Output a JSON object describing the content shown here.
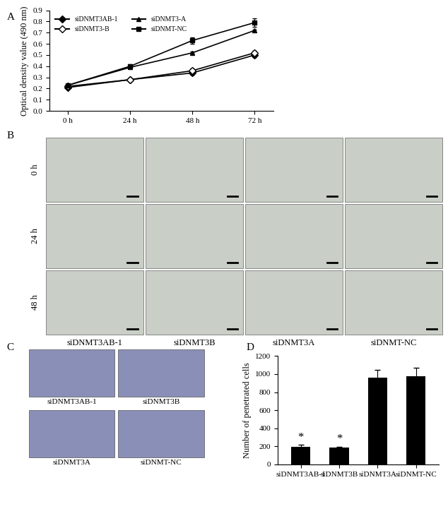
{
  "chart_data": [
    {
      "panel": "A",
      "type": "line",
      "categories": [
        "0 h",
        "24 h",
        "48 h",
        "72 h"
      ],
      "y_label": "Optical density value (490 nm)",
      "ylim": [
        0.0,
        0.9
      ],
      "yticks": [
        0.0,
        0.1,
        0.2,
        0.3,
        0.4,
        0.5,
        0.6,
        0.7,
        0.8,
        0.9
      ],
      "legend": "upper left",
      "series": [
        {
          "name": "siDNMT3AB-1",
          "color": "#000000",
          "marker": "diamond",
          "line_style": "solid",
          "values": [
            0.21,
            0.28,
            0.34,
            0.5
          ],
          "errors": [
            0.01,
            0.01,
            0.015,
            0.02
          ]
        },
        {
          "name": "siDNMT3-B",
          "color": "#000000",
          "marker": "open_diamond",
          "line_style": "solid",
          "values": [
            0.22,
            0.28,
            0.36,
            0.52
          ],
          "errors": [
            0.01,
            0.01,
            0.02,
            0.02
          ]
        },
        {
          "name": "siDNMT3-A",
          "color": "#000000",
          "marker": "triangle",
          "line_style": "solid",
          "values": [
            0.23,
            0.39,
            0.52,
            0.72
          ],
          "errors": [
            0.01,
            0.01,
            0.01,
            0.01
          ]
        },
        {
          "name": "siDNMT-NC",
          "color": "#000000",
          "marker": "square",
          "line_style": "solid",
          "values": [
            0.23,
            0.4,
            0.63,
            0.79
          ],
          "errors": [
            0.01,
            0.015,
            0.03,
            0.04
          ]
        }
      ]
    },
    {
      "panel": "D",
      "type": "bar",
      "categories": [
        "siDNMT3AB-1",
        "siDNMT3B",
        "siDNMT3A",
        "siDNMT-NC"
      ],
      "values": [
        195,
        185,
        960,
        980
      ],
      "errors": [
        20,
        12,
        90,
        90
      ],
      "color": "#000000",
      "y_label": "Number of penetrated cells",
      "ylim": [
        0,
        1200
      ],
      "yticks": [
        0,
        200,
        400,
        600,
        800,
        1000,
        1200
      ],
      "annotations": [
        {
          "category": "siDNMT3AB-1",
          "text": "*"
        },
        {
          "category": "siDNMT3B",
          "text": "*"
        }
      ]
    }
  ],
  "image_panels": [
    {
      "panel": "B",
      "row_labels": [
        "0 h",
        "24 h",
        "48 h"
      ],
      "column_labels": [
        "siDNMT3AB-1",
        "siDNMT3B",
        "siDNMT3A",
        "siDNMT-NC"
      ]
    },
    {
      "panel": "C",
      "labels": [
        "siDNMT3AB-1",
        "siDNMT3B",
        "siDNMT3A",
        "siDNMT-NC"
      ]
    }
  ]
}
